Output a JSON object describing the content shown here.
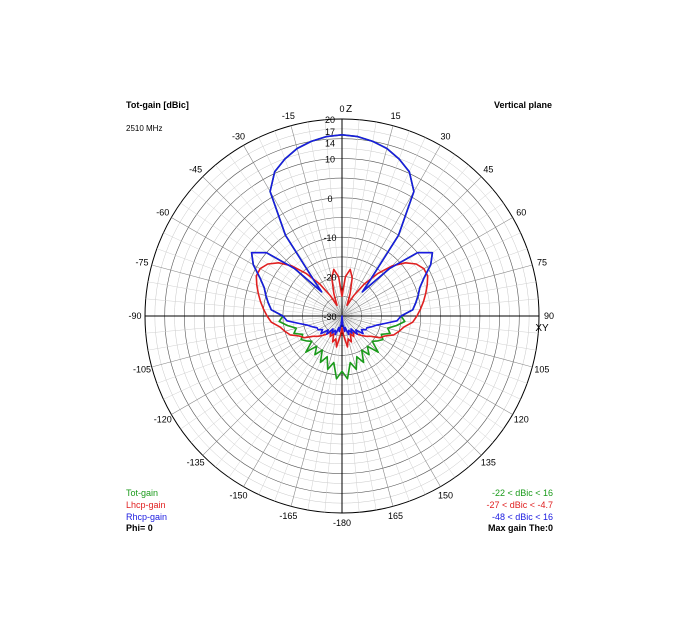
{
  "header": {
    "left_title": "Tot-gain [dBic]",
    "right_title": "Vertical plane",
    "frequency": "2510 MHz"
  },
  "legend": {
    "items": [
      {
        "name": "Tot-gain",
        "color": "#1a9a1a",
        "range": "-22 < dBic < 16"
      },
      {
        "name": "Lhcp-gain",
        "color": "#e02020",
        "range": "-27 < dBic < -4.7"
      },
      {
        "name": "Rhcp-gain",
        "color": "#1a1ae0",
        "range": "-48 < dBic < 16"
      }
    ],
    "phi": "Phi= 0",
    "max_gain": "Max gain The:0"
  },
  "chart_data": {
    "type": "polar",
    "title": "Tot-gain [dBic]",
    "subtitle": "Vertical plane",
    "note": "2510 MHz",
    "axis_z_label": "Z",
    "axis_xy_label": "XY",
    "angle_labels": [
      "0",
      "15",
      "30",
      "45",
      "60",
      "75",
      "90",
      "105",
      "120",
      "135",
      "150",
      "165",
      "-180",
      "-165",
      "-150",
      "-135",
      "-120",
      "-105",
      "-90",
      "-75",
      "-60",
      "-45",
      "-30",
      "-15"
    ],
    "angle_values": [
      0,
      15,
      30,
      45,
      60,
      75,
      90,
      105,
      120,
      135,
      150,
      165,
      180,
      -165,
      -150,
      -135,
      -120,
      -105,
      -90,
      -75,
      -60,
      -45,
      -30,
      -15
    ],
    "radial_labels": [
      "20",
      "17",
      "14",
      "10",
      "0",
      "-10",
      "-20",
      "-30"
    ],
    "radial_values": [
      20,
      17,
      14,
      10,
      0,
      -10,
      -20,
      -30
    ],
    "r_range_dbic": [
      -30,
      20
    ],
    "grid": true,
    "series": [
      {
        "name": "Tot-gain",
        "color": "#1a9a1a",
        "theta": [
          0,
          5,
          10,
          15,
          20,
          25,
          30,
          35,
          38,
          40,
          45,
          50,
          55,
          60,
          65,
          70,
          75,
          80,
          85,
          90,
          95,
          100,
          105,
          110,
          115,
          120,
          125,
          130,
          135,
          140,
          145,
          150,
          155,
          160,
          165,
          170,
          175,
          180
        ],
        "gain_dbic": [
          16,
          15.7,
          15,
          14,
          12.4,
          10.4,
          6.5,
          -5,
          -18,
          -22,
          -13,
          -5,
          -2,
          -4,
          -7,
          -9,
          -10,
          -11,
          -12,
          -15,
          -14,
          -16,
          -18,
          -17,
          -19,
          -18,
          -19,
          -20,
          -17,
          -20,
          -18,
          -20,
          -17,
          -19,
          -16,
          -18,
          -14,
          -16
        ]
      },
      {
        "name": "Lhcp-gain",
        "color": "#e02020",
        "theta": [
          0,
          5,
          10,
          15,
          20,
          25,
          30,
          35,
          40,
          45,
          50,
          55,
          60,
          65,
          70,
          75,
          80,
          85,
          90,
          95,
          100,
          105,
          110,
          115,
          120,
          125,
          130,
          135,
          140,
          145,
          150,
          155,
          160,
          165,
          170,
          175,
          180
        ],
        "gain_dbic": [
          -25,
          -20,
          -18,
          -20,
          -24,
          -27,
          -24,
          -20,
          -16,
          -12,
          -9,
          -7,
          -6,
          -6,
          -7,
          -8,
          -9,
          -10,
          -11,
          -12,
          -14,
          -15,
          -16,
          -18,
          -19,
          -21,
          -22,
          -23,
          -24,
          -25,
          -24,
          -25,
          -23,
          -24,
          -22,
          -25,
          -27
        ]
      },
      {
        "name": "Rhcp-gain",
        "color": "#1a1ae0",
        "theta": [
          0,
          5,
          10,
          15,
          20,
          25,
          30,
          35,
          38,
          40,
          45,
          50,
          55,
          60,
          65,
          70,
          75,
          80,
          85,
          90,
          95,
          100,
          105,
          110,
          115,
          120,
          125,
          130,
          135,
          140,
          145,
          150,
          155,
          160,
          165,
          170,
          175,
          180
        ],
        "gain_dbic": [
          16,
          15.7,
          15,
          14,
          12.4,
          10.4,
          6.5,
          -5,
          -18,
          -22,
          -13,
          -5,
          -2,
          -4,
          -7,
          -9,
          -10,
          -11,
          -12,
          -15,
          -16,
          -19,
          -21,
          -22,
          -23,
          -23,
          -24,
          -23,
          -25,
          -24,
          -26,
          -25,
          -26,
          -25,
          -27,
          -26,
          -28,
          -30
        ]
      }
    ]
  }
}
